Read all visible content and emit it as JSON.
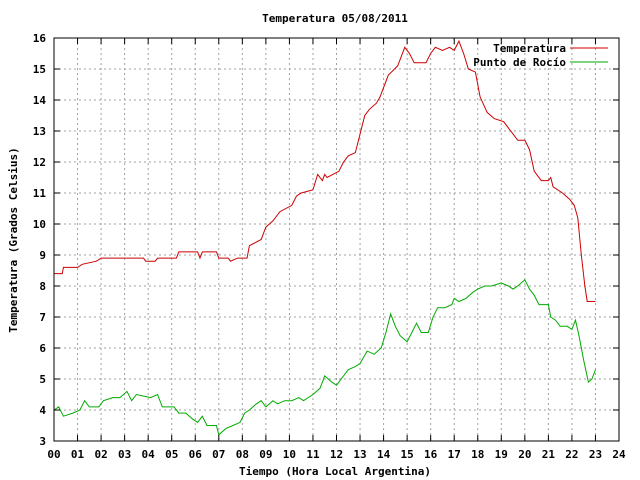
{
  "chart_data": {
    "type": "line",
    "title": "Temperatura 05/08/2011",
    "xlabel": "Tiempo (Hora Local Argentina)",
    "ylabel": "Temperatura (Grados Celsius)",
    "xlim": [
      0,
      24
    ],
    "ylim": [
      3,
      16
    ],
    "x_ticks": [
      "00",
      "01",
      "02",
      "03",
      "04",
      "05",
      "06",
      "07",
      "08",
      "09",
      "10",
      "11",
      "12",
      "13",
      "14",
      "15",
      "16",
      "17",
      "18",
      "19",
      "20",
      "21",
      "22",
      "23",
      "24"
    ],
    "y_ticks": [
      "3",
      "4",
      "5",
      "6",
      "7",
      "8",
      "9",
      "10",
      "11",
      "12",
      "13",
      "14",
      "15",
      "16"
    ],
    "grid": true,
    "legend_position": "top-right",
    "series": [
      {
        "name": "Temperatura",
        "color": "#cc0000",
        "points": [
          [
            0.0,
            8.4
          ],
          [
            0.35,
            8.4
          ],
          [
            0.4,
            8.6
          ],
          [
            1.0,
            8.6
          ],
          [
            1.2,
            8.7
          ],
          [
            1.8,
            8.8
          ],
          [
            2.0,
            8.9
          ],
          [
            3.8,
            8.9
          ],
          [
            3.9,
            8.8
          ],
          [
            4.3,
            8.8
          ],
          [
            4.4,
            8.9
          ],
          [
            5.2,
            8.9
          ],
          [
            5.3,
            9.1
          ],
          [
            6.1,
            9.1
          ],
          [
            6.2,
            8.9
          ],
          [
            6.3,
            9.1
          ],
          [
            6.9,
            9.1
          ],
          [
            7.0,
            8.9
          ],
          [
            7.4,
            8.9
          ],
          [
            7.5,
            8.8
          ],
          [
            7.8,
            8.9
          ],
          [
            8.2,
            8.9
          ],
          [
            8.3,
            9.3
          ],
          [
            8.8,
            9.5
          ],
          [
            9.0,
            9.9
          ],
          [
            9.3,
            10.1
          ],
          [
            9.6,
            10.4
          ],
          [
            10.1,
            10.6
          ],
          [
            10.3,
            10.9
          ],
          [
            10.5,
            11.0
          ],
          [
            11.0,
            11.1
          ],
          [
            11.2,
            11.6
          ],
          [
            11.4,
            11.4
          ],
          [
            11.5,
            11.6
          ],
          [
            11.6,
            11.5
          ],
          [
            12.1,
            11.7
          ],
          [
            12.3,
            12.0
          ],
          [
            12.5,
            12.2
          ],
          [
            12.8,
            12.3
          ],
          [
            13.0,
            12.9
          ],
          [
            13.2,
            13.5
          ],
          [
            13.4,
            13.7
          ],
          [
            13.7,
            13.9
          ],
          [
            13.85,
            14.1
          ],
          [
            14.0,
            14.4
          ],
          [
            14.2,
            14.8
          ],
          [
            14.6,
            15.1
          ],
          [
            14.9,
            15.7
          ],
          [
            15.1,
            15.5
          ],
          [
            15.3,
            15.2
          ],
          [
            15.8,
            15.2
          ],
          [
            16.0,
            15.5
          ],
          [
            16.2,
            15.7
          ],
          [
            16.5,
            15.6
          ],
          [
            16.8,
            15.7
          ],
          [
            17.0,
            15.6
          ],
          [
            17.2,
            15.9
          ],
          [
            17.4,
            15.5
          ],
          [
            17.6,
            15.0
          ],
          [
            17.9,
            14.9
          ],
          [
            18.1,
            14.1
          ],
          [
            18.4,
            13.6
          ],
          [
            18.7,
            13.4
          ],
          [
            19.1,
            13.3
          ],
          [
            19.5,
            12.9
          ],
          [
            19.7,
            12.7
          ],
          [
            20.0,
            12.7
          ],
          [
            20.2,
            12.4
          ],
          [
            20.4,
            11.7
          ],
          [
            20.7,
            11.4
          ],
          [
            21.0,
            11.4
          ],
          [
            21.1,
            11.5
          ],
          [
            21.2,
            11.2
          ],
          [
            21.6,
            11.0
          ],
          [
            21.9,
            10.8
          ],
          [
            22.1,
            10.6
          ],
          [
            22.25,
            10.2
          ],
          [
            22.4,
            9.0
          ],
          [
            22.55,
            8.0
          ],
          [
            22.65,
            7.5
          ],
          [
            23.0,
            7.5
          ]
        ]
      },
      {
        "name": "Punto de Rocío",
        "color": "#00aa00",
        "points": [
          [
            0.0,
            4.0
          ],
          [
            0.2,
            4.1
          ],
          [
            0.4,
            3.8
          ],
          [
            0.8,
            3.9
          ],
          [
            1.1,
            4.0
          ],
          [
            1.3,
            4.3
          ],
          [
            1.5,
            4.1
          ],
          [
            1.9,
            4.1
          ],
          [
            2.1,
            4.3
          ],
          [
            2.5,
            4.4
          ],
          [
            2.8,
            4.4
          ],
          [
            3.1,
            4.6
          ],
          [
            3.3,
            4.3
          ],
          [
            3.5,
            4.5
          ],
          [
            4.1,
            4.4
          ],
          [
            4.4,
            4.5
          ],
          [
            4.6,
            4.1
          ],
          [
            4.9,
            4.1
          ],
          [
            5.1,
            4.1
          ],
          [
            5.3,
            3.9
          ],
          [
            5.6,
            3.9
          ],
          [
            5.9,
            3.7
          ],
          [
            6.1,
            3.6
          ],
          [
            6.3,
            3.8
          ],
          [
            6.5,
            3.5
          ],
          [
            6.9,
            3.5
          ],
          [
            7.0,
            3.2
          ],
          [
            7.3,
            3.4
          ],
          [
            7.6,
            3.5
          ],
          [
            7.9,
            3.6
          ],
          [
            8.1,
            3.9
          ],
          [
            8.3,
            4.0
          ],
          [
            8.6,
            4.2
          ],
          [
            8.8,
            4.3
          ],
          [
            9.0,
            4.1
          ],
          [
            9.3,
            4.3
          ],
          [
            9.5,
            4.2
          ],
          [
            9.8,
            4.3
          ],
          [
            10.1,
            4.3
          ],
          [
            10.4,
            4.4
          ],
          [
            10.6,
            4.3
          ],
          [
            11.0,
            4.5
          ],
          [
            11.3,
            4.7
          ],
          [
            11.5,
            5.1
          ],
          [
            11.8,
            4.9
          ],
          [
            12.0,
            4.8
          ],
          [
            12.2,
            5.0
          ],
          [
            12.5,
            5.3
          ],
          [
            12.8,
            5.4
          ],
          [
            13.0,
            5.5
          ],
          [
            13.3,
            5.9
          ],
          [
            13.6,
            5.8
          ],
          [
            13.9,
            6.0
          ],
          [
            14.1,
            6.5
          ],
          [
            14.3,
            7.1
          ],
          [
            14.5,
            6.7
          ],
          [
            14.7,
            6.4
          ],
          [
            15.0,
            6.2
          ],
          [
            15.2,
            6.5
          ],
          [
            15.4,
            6.8
          ],
          [
            15.6,
            6.5
          ],
          [
            15.9,
            6.5
          ],
          [
            16.1,
            7.0
          ],
          [
            16.3,
            7.3
          ],
          [
            16.6,
            7.3
          ],
          [
            16.9,
            7.4
          ],
          [
            17.0,
            7.6
          ],
          [
            17.2,
            7.5
          ],
          [
            17.5,
            7.6
          ],
          [
            17.8,
            7.8
          ],
          [
            18.0,
            7.9
          ],
          [
            18.3,
            8.0
          ],
          [
            18.6,
            8.0
          ],
          [
            19.0,
            8.1
          ],
          [
            19.3,
            8.0
          ],
          [
            19.5,
            7.9
          ],
          [
            19.7,
            8.0
          ],
          [
            20.0,
            8.2
          ],
          [
            20.2,
            7.9
          ],
          [
            20.4,
            7.7
          ],
          [
            20.6,
            7.4
          ],
          [
            21.0,
            7.4
          ],
          [
            21.1,
            7.0
          ],
          [
            21.3,
            6.9
          ],
          [
            21.5,
            6.7
          ],
          [
            21.8,
            6.7
          ],
          [
            22.0,
            6.6
          ],
          [
            22.15,
            6.9
          ],
          [
            22.3,
            6.4
          ],
          [
            22.5,
            5.6
          ],
          [
            22.7,
            4.9
          ],
          [
            22.85,
            5.0
          ],
          [
            23.0,
            5.3
          ]
        ]
      }
    ]
  }
}
